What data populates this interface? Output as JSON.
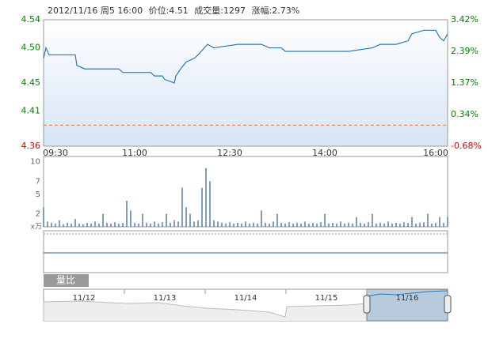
{
  "header": {
    "datetime": "2012/11/16 周5 16:00",
    "price": "价位:4.51",
    "volume": "成交量:1297",
    "change": "涨幅:2.73%"
  },
  "chart_data": [
    {
      "type": "line",
      "prev_close": 4.39,
      "series": [
        {
          "name": "价位",
          "color": "#2a7ab8",
          "x": [
            0,
            0.6,
            1.4,
            3,
            8,
            8.4,
            10.4,
            19,
            20,
            27,
            28,
            30,
            30.6,
            33,
            33.4,
            34.6,
            36,
            38,
            39,
            40.6,
            41.4,
            43,
            49,
            55,
            57,
            60,
            61,
            69,
            77,
            83,
            85,
            89,
            92,
            93,
            96,
            99,
            100,
            101,
            102
          ],
          "values": [
            4.485,
            4.5,
            4.49,
            4.49,
            4.49,
            4.475,
            4.47,
            4.47,
            4.465,
            4.465,
            4.46,
            4.46,
            4.455,
            4.45,
            4.46,
            4.47,
            4.48,
            4.485,
            4.49,
            4.5,
            4.505,
            4.5,
            4.505,
            4.505,
            4.5,
            4.5,
            4.495,
            4.495,
            4.495,
            4.5,
            4.505,
            4.505,
            4.51,
            4.52,
            4.525,
            4.525,
            4.515,
            4.51,
            4.52
          ]
        }
      ],
      "xlim": [
        0,
        102
      ],
      "xticks": [
        {
          "value": 3,
          "label": "09:30"
        },
        {
          "value": 23,
          "label": "11:00"
        },
        {
          "value": 47,
          "label": "12:30"
        },
        {
          "value": 71,
          "label": "14:00"
        },
        {
          "value": 99,
          "label": "16:00"
        }
      ],
      "ylim": [
        4.36,
        4.54
      ],
      "yticks": [
        4.36,
        4.41,
        4.45,
        {
          "value": 4.5,
          "label": "4.50"
        },
        4.54
      ],
      "y2lim": [
        -0.68,
        3.42
      ],
      "y2ticks": [
        {
          "value": -0.68,
          "label": "-0.68%"
        },
        {
          "value": 0.34,
          "label": "0.34%"
        },
        {
          "value": 1.37,
          "label": "1.37%"
        },
        {
          "value": 2.39,
          "label": "2.39%"
        },
        {
          "value": 3.42,
          "label": "3.42%"
        }
      ]
    },
    {
      "type": "bar",
      "color": "#2a5f8f",
      "unit": "x万",
      "values": [
        3,
        0.8,
        0.6,
        0.5,
        1,
        0.4,
        0.6,
        0.5,
        1.2,
        0.5,
        0.4,
        0.6,
        0.5,
        0.8,
        0.5,
        2,
        0.6,
        0.5,
        0.7,
        0.5,
        0.6,
        4,
        2.5,
        0.6,
        0.5,
        2,
        0.6,
        0.5,
        0.8,
        0.5,
        0.7,
        2,
        0.6,
        1,
        0.8,
        6,
        3,
        2,
        0.8,
        1,
        6,
        9,
        7,
        1,
        0.8,
        0.6,
        0.5,
        0.7,
        0.5,
        0.6,
        0.5,
        0.8,
        0.5,
        0.6,
        0.5,
        2.5,
        0.6,
        0.5,
        0.8,
        2,
        0.6,
        0.5,
        0.7,
        0.5,
        0.6,
        0.5,
        0.8,
        0.5,
        0.6,
        0.5,
        0.7,
        2,
        0.5,
        0.6,
        0.5,
        0.8,
        0.5,
        0.6,
        0.5,
        1.5,
        0.6,
        0.5,
        0.7,
        2,
        0.5,
        0.6,
        0.5,
        0.8,
        0.5,
        0.6,
        0.5,
        0.7,
        0.6,
        1.5,
        0.5,
        0.6,
        0.7,
        2,
        0.5,
        0.6,
        1.5,
        0.6,
        1.5
      ],
      "ylim": [
        0,
        10.8
      ],
      "yticks": [
        2,
        5,
        7,
        10
      ]
    }
  ],
  "tab": "量比",
  "navigator": {
    "dates": [
      "11/12",
      "11/13",
      "11/14",
      "11/15",
      "11/16"
    ]
  }
}
